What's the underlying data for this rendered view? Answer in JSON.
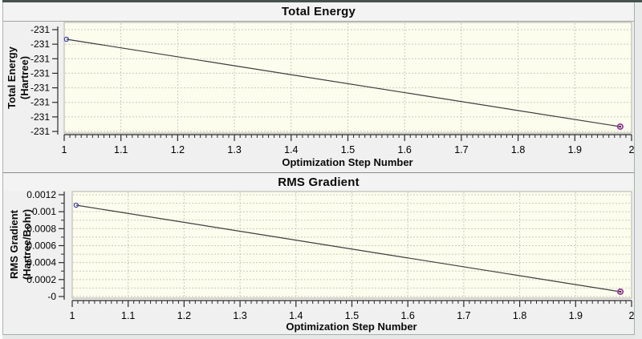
{
  "window": {
    "background": "#f0f0f0",
    "top_border_color": "#46524f"
  },
  "colors": {
    "plot_bg": "#fdfdee",
    "plot_border": "#b2b2a6",
    "grid": "#c9c9bd",
    "axis": "#2b2b2b",
    "line": "#3c3c3c",
    "marker_start": "#3d3dae",
    "marker_end": "#9c3a9c",
    "marker_end_dot": "#4a2a4a",
    "titlebar_bg": "#f3f3f3"
  },
  "panels": [
    {
      "title": "Total Energy",
      "y_axis_title_line1": "Total Energy",
      "y_axis_title_line2": "(Hartree)",
      "x_axis_title": "Optimization Step Number"
    },
    {
      "title": "RMS Gradient",
      "y_axis_title_line1": "RMS Gradient",
      "y_axis_title_line2": "(Hartree/Bohr)",
      "x_axis_title": "Optimization Step Number"
    }
  ],
  "chart_data": [
    {
      "type": "line",
      "title": "Total Energy",
      "xlabel": "Optimization Step Number",
      "ylabel": "Total Energy (Hartree)",
      "x_range": [
        1,
        2
      ],
      "x_tick_labels": [
        "1",
        "1.1",
        "1.2",
        "1.3",
        "1.4",
        "1.5",
        "1.6",
        "1.7",
        "1.8",
        "1.9",
        "2"
      ],
      "x_minor_divisions": 10,
      "y_tick_labels": [
        "-231",
        "-231",
        "-231",
        "-231",
        "-231",
        "-231",
        "-231",
        "-231"
      ],
      "y_minor_between_majors": 0,
      "grid": true,
      "legend": false,
      "series": [
        {
          "name": "Total Energy",
          "x": [
            1,
            2
          ],
          "y_display": [
            "-231",
            "-231"
          ],
          "x_frac": [
            0.004,
            0.98
          ],
          "y_frac": [
            0.152,
            0.942
          ]
        }
      ]
    },
    {
      "type": "line",
      "title": "RMS Gradient",
      "xlabel": "Optimization Step Number",
      "ylabel": "RMS Gradient (Hartree/Bohr)",
      "x_range": [
        1,
        2
      ],
      "ylim": [
        0,
        0.0012
      ],
      "x_tick_labels": [
        "1",
        "1.1",
        "1.2",
        "1.3",
        "1.4",
        "1.5",
        "1.6",
        "1.7",
        "1.8",
        "1.9",
        "2"
      ],
      "x_minor_divisions": 10,
      "y_tick_labels": [
        "0.0012",
        "0.001",
        "0.0008",
        "0.0006",
        "0.0004",
        "0.0002",
        "-0"
      ],
      "y_minor_between_majors": 1,
      "grid": true,
      "legend": false,
      "series": [
        {
          "name": "RMS Gradient",
          "x": [
            1,
            2
          ],
          "y": [
            0.0011,
            6e-05
          ],
          "x_frac": [
            0.007,
            0.98
          ],
          "y_frac": [
            0.128,
            0.94
          ]
        }
      ]
    }
  ]
}
